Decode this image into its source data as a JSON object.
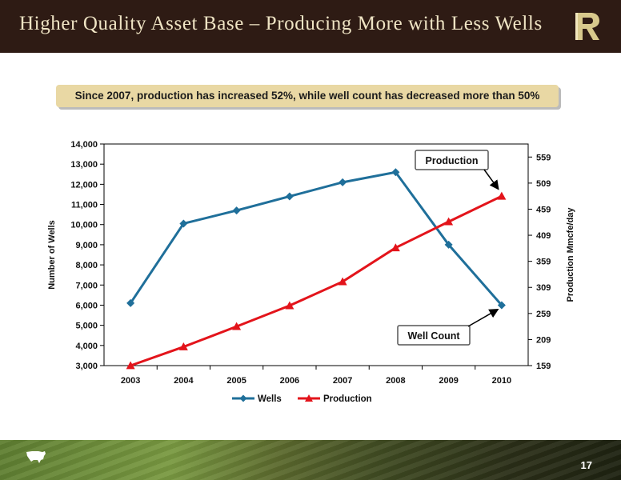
{
  "header": {
    "title": "Higher Quality Asset Base – Producing More with Less Wells"
  },
  "callout": {
    "text": "Since 2007, production has increased 52%, while well count has decreased more than 50%"
  },
  "footer": {
    "page_number": "17",
    "map_icon": "us-map-icon",
    "logo_icon": "company-logo-icon"
  },
  "colors": {
    "title_bar": "#2e1b14",
    "title_text": "#efe4c4",
    "banner": "#e9d8a4",
    "wells": "#1f6f9a",
    "production": "#e3141b"
  },
  "chart_data": {
    "type": "line",
    "x": [
      "2003",
      "2004",
      "2005",
      "2006",
      "2007",
      "2008",
      "2009",
      "2010"
    ],
    "ylabel": "Number of Wells",
    "y2label": "Production Mmcfe/day",
    "ylim": [
      3000,
      14000
    ],
    "y_ticks": [
      "3,000",
      "4,000",
      "5,000",
      "6,000",
      "7,000",
      "8,000",
      "9,000",
      "10,000",
      "11,000",
      "12,000",
      "13,000",
      "14,000"
    ],
    "y2lim": [
      159,
      584
    ],
    "y2_ticks": [
      "159",
      "209",
      "259",
      "309",
      "359",
      "409",
      "459",
      "509",
      "559"
    ],
    "series": [
      {
        "name": "Wells",
        "axis": "left",
        "marker": "diamond",
        "values": [
          6100,
          10050,
          10700,
          11400,
          12100,
          12600,
          9000,
          6000
        ]
      },
      {
        "name": "Production",
        "axis": "right",
        "marker": "triangle",
        "values": [
          159,
          195,
          234,
          274,
          320,
          385,
          435,
          484
        ]
      }
    ],
    "annotations": [
      {
        "text": "Production",
        "points_to": "Production 2010"
      },
      {
        "text": "Well Count",
        "points_to": "Wells 2010"
      }
    ],
    "legend": "bottom",
    "grid": false
  }
}
